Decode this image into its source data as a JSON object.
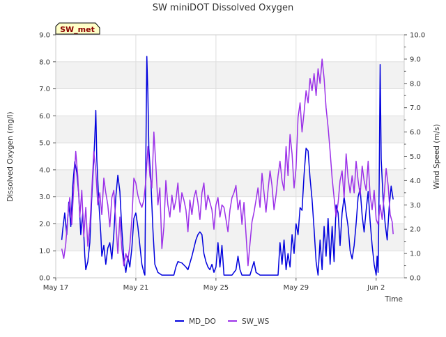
{
  "chart_data": {
    "type": "line",
    "title": "SW miniDOT Dissolved Oxygen",
    "station_label": "SW_met",
    "xlabel": "Time",
    "ylabel": "Dissolved Oxygen (mg/l)",
    "ylabel_right": "Wind Speed (m/s)",
    "xlim": [
      0,
      17.4
    ],
    "ylim": [
      0,
      9
    ],
    "ylim_right": [
      0,
      10
    ],
    "x_ticks": [
      {
        "x": 0,
        "label": "May 17"
      },
      {
        "x": 4,
        "label": "May 21"
      },
      {
        "x": 8,
        "label": "May 25"
      },
      {
        "x": 12,
        "label": "May 29"
      },
      {
        "x": 16,
        "label": "Jun 2"
      }
    ],
    "y_ticks": [
      "0.0",
      "1.0",
      "2.0",
      "3.0",
      "4.0",
      "5.0",
      "6.0",
      "7.0",
      "8.0",
      "9.0"
    ],
    "y_ticks_right": [
      "0.0",
      "1.0",
      "2.0",
      "3.0",
      "4.0",
      "5.0",
      "6.0",
      "7.0",
      "8.0",
      "9.0",
      "10.0"
    ],
    "grid": true,
    "legend_position": "bottom",
    "series": [
      {
        "name": "MD_DO",
        "color": "#0000dd",
        "axis": "left",
        "points": [
          [
            0.3,
            1.4
          ],
          [
            0.35,
            1.8
          ],
          [
            0.45,
            2.4
          ],
          [
            0.55,
            1.6
          ],
          [
            0.65,
            2.8
          ],
          [
            0.75,
            1.9
          ],
          [
            0.85,
            3.4
          ],
          [
            0.95,
            4.3
          ],
          [
            1.05,
            3.9
          ],
          [
            1.15,
            3.1
          ],
          [
            1.25,
            1.6
          ],
          [
            1.35,
            2.4
          ],
          [
            1.45,
            0.8
          ],
          [
            1.5,
            0.3
          ],
          [
            1.6,
            0.6
          ],
          [
            1.7,
            1.3
          ],
          [
            1.8,
            3.0
          ],
          [
            1.9,
            4.4
          ],
          [
            1.95,
            5.2
          ],
          [
            2.0,
            6.2
          ],
          [
            2.05,
            4.4
          ],
          [
            2.15,
            2.8
          ],
          [
            2.25,
            1.6
          ],
          [
            2.3,
            0.8
          ],
          [
            2.4,
            1.2
          ],
          [
            2.5,
            0.5
          ],
          [
            2.6,
            1.1
          ],
          [
            2.7,
            1.3
          ],
          [
            2.8,
            0.7
          ],
          [
            2.9,
            1.6
          ],
          [
            3.0,
            3.0
          ],
          [
            3.1,
            3.8
          ],
          [
            3.2,
            3.2
          ],
          [
            3.3,
            1.8
          ],
          [
            3.4,
            0.7
          ],
          [
            3.5,
            0.2
          ],
          [
            3.6,
            0.8
          ],
          [
            3.7,
            0.4
          ],
          [
            3.8,
            1.1
          ],
          [
            3.9,
            2.2
          ],
          [
            4.0,
            2.4
          ],
          [
            4.1,
            1.9
          ],
          [
            4.2,
            1.2
          ],
          [
            4.3,
            0.5
          ],
          [
            4.4,
            0.2
          ],
          [
            4.45,
            0.1
          ],
          [
            4.5,
            4.5
          ],
          [
            4.55,
            8.2
          ],
          [
            4.6,
            6.8
          ],
          [
            4.65,
            4.8
          ],
          [
            4.75,
            3.6
          ],
          [
            4.85,
            1.8
          ],
          [
            4.95,
            0.5
          ],
          [
            5.1,
            0.2
          ],
          [
            5.3,
            0.1
          ],
          [
            5.6,
            0.1
          ],
          [
            5.9,
            0.1
          ],
          [
            6.0,
            0.4
          ],
          [
            6.1,
            0.6
          ],
          [
            6.3,
            0.55
          ],
          [
            6.5,
            0.4
          ],
          [
            6.6,
            0.3
          ],
          [
            6.8,
            0.8
          ],
          [
            7.0,
            1.4
          ],
          [
            7.1,
            1.6
          ],
          [
            7.2,
            1.7
          ],
          [
            7.3,
            1.6
          ],
          [
            7.4,
            0.9
          ],
          [
            7.5,
            0.6
          ],
          [
            7.6,
            0.4
          ],
          [
            7.7,
            0.3
          ],
          [
            7.8,
            0.5
          ],
          [
            7.9,
            0.2
          ],
          [
            8.0,
            0.4
          ],
          [
            8.1,
            1.3
          ],
          [
            8.2,
            0.4
          ],
          [
            8.3,
            1.2
          ],
          [
            8.4,
            0.1
          ],
          [
            8.6,
            0.1
          ],
          [
            8.8,
            0.1
          ],
          [
            9.0,
            0.3
          ],
          [
            9.1,
            0.8
          ],
          [
            9.2,
            0.3
          ],
          [
            9.3,
            0.1
          ],
          [
            9.5,
            0.1
          ],
          [
            9.7,
            0.1
          ],
          [
            9.9,
            0.6
          ],
          [
            10.0,
            0.2
          ],
          [
            10.2,
            0.1
          ],
          [
            10.5,
            0.1
          ],
          [
            10.8,
            0.1
          ],
          [
            11.1,
            0.1
          ],
          [
            11.2,
            1.3
          ],
          [
            11.3,
            0.5
          ],
          [
            11.4,
            1.4
          ],
          [
            11.5,
            0.3
          ],
          [
            11.6,
            0.9
          ],
          [
            11.7,
            0.4
          ],
          [
            11.8,
            1.6
          ],
          [
            11.9,
            0.9
          ],
          [
            12.0,
            2.0
          ],
          [
            12.1,
            1.6
          ],
          [
            12.2,
            2.6
          ],
          [
            12.3,
            2.5
          ],
          [
            12.4,
            3.8
          ],
          [
            12.5,
            4.8
          ],
          [
            12.6,
            4.7
          ],
          [
            12.7,
            3.7
          ],
          [
            12.8,
            2.9
          ],
          [
            12.9,
            1.8
          ],
          [
            13.0,
            0.6
          ],
          [
            13.1,
            0.1
          ],
          [
            13.2,
            1.4
          ],
          [
            13.3,
            0.3
          ],
          [
            13.4,
            1.9
          ],
          [
            13.5,
            0.8
          ],
          [
            13.6,
            2.2
          ],
          [
            13.7,
            0.5
          ],
          [
            13.8,
            1.9
          ],
          [
            13.9,
            0.6
          ],
          [
            14.0,
            2.7
          ],
          [
            14.1,
            2.4
          ],
          [
            14.2,
            1.2
          ],
          [
            14.3,
            2.4
          ],
          [
            14.4,
            3.0
          ],
          [
            14.5,
            2.4
          ],
          [
            14.6,
            1.9
          ],
          [
            14.7,
            1.0
          ],
          [
            14.8,
            0.7
          ],
          [
            14.9,
            1.2
          ],
          [
            15.0,
            2.0
          ],
          [
            15.1,
            3.0
          ],
          [
            15.2,
            3.3
          ],
          [
            15.3,
            2.3
          ],
          [
            15.4,
            1.7
          ],
          [
            15.5,
            2.5
          ],
          [
            15.6,
            3.2
          ],
          [
            15.7,
            2.1
          ],
          [
            15.8,
            1.2
          ],
          [
            15.9,
            0.5
          ],
          [
            16.0,
            0.1
          ],
          [
            16.05,
            0.8
          ],
          [
            16.1,
            0.2
          ],
          [
            16.15,
            3.5
          ],
          [
            16.2,
            7.9
          ],
          [
            16.25,
            4.4
          ],
          [
            16.35,
            2.9
          ],
          [
            16.45,
            2.0
          ],
          [
            16.55,
            1.4
          ],
          [
            16.65,
            2.6
          ],
          [
            16.75,
            3.4
          ],
          [
            16.85,
            2.9
          ]
        ]
      },
      {
        "name": "SW_WS",
        "color": "#9b30e8",
        "axis": "right",
        "points": [
          [
            0.3,
            1.2
          ],
          [
            0.4,
            0.8
          ],
          [
            0.5,
            1.4
          ],
          [
            0.6,
            2.5
          ],
          [
            0.7,
            3.3
          ],
          [
            0.8,
            2.2
          ],
          [
            0.9,
            3.8
          ],
          [
            1.0,
            5.2
          ],
          [
            1.1,
            4.2
          ],
          [
            1.2,
            2.5
          ],
          [
            1.3,
            3.6
          ],
          [
            1.4,
            1.7
          ],
          [
            1.5,
            2.9
          ],
          [
            1.6,
            1.3
          ],
          [
            1.7,
            2.1
          ],
          [
            1.8,
            3.6
          ],
          [
            1.9,
            5.2
          ],
          [
            2.0,
            4.4
          ],
          [
            2.1,
            3.0
          ],
          [
            2.2,
            3.5
          ],
          [
            2.3,
            2.6
          ],
          [
            2.4,
            4.1
          ],
          [
            2.5,
            3.5
          ],
          [
            2.6,
            3.0
          ],
          [
            2.7,
            2.1
          ],
          [
            2.8,
            3.3
          ],
          [
            2.9,
            3.6
          ],
          [
            3.0,
            2.3
          ],
          [
            3.1,
            1.0
          ],
          [
            3.2,
            2.5
          ],
          [
            3.3,
            1.2
          ],
          [
            3.4,
            0.5
          ],
          [
            3.5,
            1.0
          ],
          [
            3.6,
            0.7
          ],
          [
            3.7,
            1.3
          ],
          [
            3.8,
            2.4
          ],
          [
            3.9,
            4.1
          ],
          [
            4.0,
            3.9
          ],
          [
            4.1,
            3.4
          ],
          [
            4.2,
            3.1
          ],
          [
            4.3,
            2.9
          ],
          [
            4.4,
            3.2
          ],
          [
            4.5,
            4.0
          ],
          [
            4.6,
            5.4
          ],
          [
            4.7,
            4.2
          ],
          [
            4.8,
            3.7
          ],
          [
            4.9,
            6.0
          ],
          [
            5.0,
            4.6
          ],
          [
            5.1,
            3.0
          ],
          [
            5.2,
            3.7
          ],
          [
            5.3,
            1.2
          ],
          [
            5.4,
            2.1
          ],
          [
            5.5,
            4.0
          ],
          [
            5.6,
            3.0
          ],
          [
            5.7,
            2.5
          ],
          [
            5.8,
            3.4
          ],
          [
            5.9,
            2.8
          ],
          [
            6.0,
            3.2
          ],
          [
            6.1,
            3.9
          ],
          [
            6.2,
            2.7
          ],
          [
            6.3,
            3.5
          ],
          [
            6.4,
            3.2
          ],
          [
            6.5,
            2.8
          ],
          [
            6.6,
            1.9
          ],
          [
            6.7,
            3.2
          ],
          [
            6.8,
            2.6
          ],
          [
            6.9,
            3.3
          ],
          [
            7.0,
            3.6
          ],
          [
            7.1,
            3.1
          ],
          [
            7.2,
            2.4
          ],
          [
            7.3,
            3.5
          ],
          [
            7.4,
            3.9
          ],
          [
            7.5,
            2.8
          ],
          [
            7.6,
            3.4
          ],
          [
            7.7,
            3.1
          ],
          [
            7.8,
            2.8
          ],
          [
            7.9,
            2.0
          ],
          [
            8.0,
            3.0
          ],
          [
            8.1,
            3.3
          ],
          [
            8.2,
            2.5
          ],
          [
            8.3,
            3.0
          ],
          [
            8.4,
            2.9
          ],
          [
            8.5,
            2.4
          ],
          [
            8.6,
            1.9
          ],
          [
            8.7,
            2.8
          ],
          [
            8.8,
            3.3
          ],
          [
            8.9,
            3.5
          ],
          [
            9.0,
            3.8
          ],
          [
            9.1,
            2.8
          ],
          [
            9.2,
            3.2
          ],
          [
            9.3,
            2.2
          ],
          [
            9.4,
            3.1
          ],
          [
            9.5,
            1.8
          ],
          [
            9.6,
            0.5
          ],
          [
            9.7,
            1.4
          ],
          [
            9.8,
            2.3
          ],
          [
            9.9,
            2.7
          ],
          [
            10.0,
            3.2
          ],
          [
            10.1,
            3.7
          ],
          [
            10.2,
            2.9
          ],
          [
            10.3,
            4.3
          ],
          [
            10.4,
            3.5
          ],
          [
            10.5,
            2.7
          ],
          [
            10.6,
            3.6
          ],
          [
            10.7,
            4.4
          ],
          [
            10.8,
            3.8
          ],
          [
            10.9,
            2.8
          ],
          [
            11.0,
            3.4
          ],
          [
            11.1,
            4.2
          ],
          [
            11.2,
            4.8
          ],
          [
            11.3,
            4.0
          ],
          [
            11.4,
            3.6
          ],
          [
            11.5,
            5.4
          ],
          [
            11.6,
            4.2
          ],
          [
            11.7,
            5.9
          ],
          [
            11.8,
            5.1
          ],
          [
            11.9,
            3.7
          ],
          [
            12.0,
            4.5
          ],
          [
            12.1,
            6.6
          ],
          [
            12.2,
            7.2
          ],
          [
            12.3,
            6.0
          ],
          [
            12.4,
            6.8
          ],
          [
            12.5,
            7.7
          ],
          [
            12.6,
            7.2
          ],
          [
            12.7,
            8.2
          ],
          [
            12.8,
            7.7
          ],
          [
            12.9,
            8.4
          ],
          [
            13.0,
            7.5
          ],
          [
            13.1,
            8.6
          ],
          [
            13.2,
            8.0
          ],
          [
            13.3,
            9.0
          ],
          [
            13.4,
            8.2
          ],
          [
            13.5,
            7.0
          ],
          [
            13.6,
            6.2
          ],
          [
            13.7,
            5.2
          ],
          [
            13.8,
            4.1
          ],
          [
            13.9,
            3.3
          ],
          [
            14.0,
            2.5
          ],
          [
            14.1,
            3.1
          ],
          [
            14.2,
            4.0
          ],
          [
            14.3,
            4.4
          ],
          [
            14.4,
            3.3
          ],
          [
            14.5,
            5.1
          ],
          [
            14.6,
            4.1
          ],
          [
            14.7,
            3.5
          ],
          [
            14.8,
            4.2
          ],
          [
            14.9,
            3.5
          ],
          [
            15.0,
            4.8
          ],
          [
            15.1,
            4.0
          ],
          [
            15.2,
            3.4
          ],
          [
            15.3,
            4.6
          ],
          [
            15.4,
            4.0
          ],
          [
            15.5,
            3.6
          ],
          [
            15.6,
            4.8
          ],
          [
            15.7,
            3.4
          ],
          [
            15.8,
            2.8
          ],
          [
            15.9,
            3.6
          ],
          [
            16.0,
            2.4
          ],
          [
            16.1,
            2.2
          ],
          [
            16.2,
            3.0
          ],
          [
            16.3,
            2.4
          ],
          [
            16.4,
            3.4
          ],
          [
            16.5,
            4.5
          ],
          [
            16.6,
            3.8
          ],
          [
            16.7,
            2.6
          ],
          [
            16.8,
            2.3
          ],
          [
            16.85,
            1.8
          ]
        ]
      }
    ]
  }
}
